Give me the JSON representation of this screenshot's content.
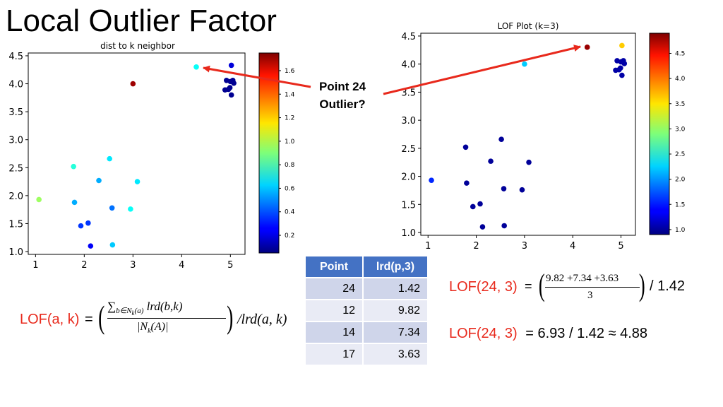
{
  "slide": {
    "title": "Local Outlier Factor"
  },
  "callout": {
    "line1": "Point 24",
    "line2": "Outlier?"
  },
  "colors": {
    "arrow": "#e8291c",
    "header": "#4472c4",
    "row_odd": "#cfd5ea",
    "row_even": "#e9ebf5",
    "accent_text": "#e8291c"
  },
  "chart_data": [
    {
      "type": "scatter",
      "title": "dist to k neighbor",
      "xlim": [
        0.85,
        5.3
      ],
      "ylim": [
        0.95,
        4.55
      ],
      "xticks": [
        "1",
        "2",
        "3",
        "4",
        "5"
      ],
      "yticks": [
        "1.0",
        "1.5",
        "2.0",
        "2.5",
        "3.0",
        "3.5",
        "4.0",
        "4.5"
      ],
      "colormap": "jet",
      "colorbar": {
        "range": [
          0.05,
          1.75
        ],
        "ticks": [
          "0.2",
          "0.4",
          "0.6",
          "0.8",
          "1.0",
          "1.2",
          "1.4",
          "1.6"
        ]
      },
      "points": [
        {
          "x": 1.07,
          "y": 1.93,
          "c": 0.95
        },
        {
          "x": 1.78,
          "y": 2.52,
          "c": 0.75
        },
        {
          "x": 1.8,
          "y": 1.88,
          "c": 0.55
        },
        {
          "x": 1.93,
          "y": 1.46,
          "c": 0.35
        },
        {
          "x": 2.08,
          "y": 1.51,
          "c": 0.35
        },
        {
          "x": 2.13,
          "y": 1.1,
          "c": 0.25
        },
        {
          "x": 2.3,
          "y": 2.27,
          "c": 0.55
        },
        {
          "x": 2.52,
          "y": 2.66,
          "c": 0.65
        },
        {
          "x": 2.57,
          "y": 1.78,
          "c": 0.45
        },
        {
          "x": 2.58,
          "y": 1.12,
          "c": 0.6
        },
        {
          "x": 2.95,
          "y": 1.76,
          "c": 0.7
        },
        {
          "x": 3.09,
          "y": 2.25,
          "c": 0.65
        },
        {
          "x": 3.0,
          "y": 4.0,
          "c": 1.7
        },
        {
          "x": 4.3,
          "y": 4.3,
          "c": 0.7
        },
        {
          "x": 5.02,
          "y": 4.33,
          "c": 0.2
        },
        {
          "x": 4.92,
          "y": 4.06,
          "c": 0.08
        },
        {
          "x": 5.0,
          "y": 4.04,
          "c": 0.08
        },
        {
          "x": 5.05,
          "y": 4.06,
          "c": 0.08
        },
        {
          "x": 5.07,
          "y": 4.01,
          "c": 0.08
        },
        {
          "x": 4.99,
          "y": 3.93,
          "c": 0.08
        },
        {
          "x": 4.89,
          "y": 3.89,
          "c": 0.08
        },
        {
          "x": 4.96,
          "y": 3.9,
          "c": 0.08
        },
        {
          "x": 5.02,
          "y": 3.8,
          "c": 0.08
        }
      ]
    },
    {
      "type": "scatter",
      "title": "LOF Plot (k=3)",
      "xlim": [
        0.85,
        5.3
      ],
      "ylim": [
        0.95,
        4.55
      ],
      "xticks": [
        "1",
        "2",
        "3",
        "4",
        "5"
      ],
      "yticks": [
        "1.0",
        "1.5",
        "2.0",
        "2.5",
        "3.0",
        "3.5",
        "4.0",
        "4.5"
      ],
      "colormap": "jet",
      "colorbar": {
        "range": [
          0.9,
          4.9
        ],
        "ticks": [
          "1.0",
          "1.5",
          "2.0",
          "2.5",
          "3.0",
          "3.5",
          "4.0",
          "4.5"
        ]
      },
      "points": [
        {
          "x": 1.07,
          "y": 1.93,
          "c": 1.55
        },
        {
          "x": 1.78,
          "y": 2.52,
          "c": 1.0
        },
        {
          "x": 1.8,
          "y": 1.88,
          "c": 1.0
        },
        {
          "x": 1.93,
          "y": 1.46,
          "c": 1.0
        },
        {
          "x": 2.08,
          "y": 1.51,
          "c": 1.0
        },
        {
          "x": 2.13,
          "y": 1.1,
          "c": 1.0
        },
        {
          "x": 2.3,
          "y": 2.27,
          "c": 1.0
        },
        {
          "x": 2.52,
          "y": 2.66,
          "c": 1.0
        },
        {
          "x": 2.57,
          "y": 1.78,
          "c": 1.0
        },
        {
          "x": 2.58,
          "y": 1.12,
          "c": 1.0
        },
        {
          "x": 2.95,
          "y": 1.76,
          "c": 1.0
        },
        {
          "x": 3.09,
          "y": 2.25,
          "c": 1.0
        },
        {
          "x": 3.0,
          "y": 4.0,
          "c": 2.2
        },
        {
          "x": 4.3,
          "y": 4.3,
          "c": 4.8
        },
        {
          "x": 5.02,
          "y": 4.33,
          "c": 3.6
        },
        {
          "x": 4.92,
          "y": 4.06,
          "c": 1.05
        },
        {
          "x": 5.0,
          "y": 4.04,
          "c": 1.05
        },
        {
          "x": 5.05,
          "y": 4.06,
          "c": 1.05
        },
        {
          "x": 5.07,
          "y": 4.01,
          "c": 1.05
        },
        {
          "x": 4.99,
          "y": 3.93,
          "c": 1.05
        },
        {
          "x": 4.89,
          "y": 3.89,
          "c": 1.05
        },
        {
          "x": 4.96,
          "y": 3.9,
          "c": 1.05
        },
        {
          "x": 5.02,
          "y": 3.8,
          "c": 1.05
        }
      ]
    }
  ],
  "table": {
    "headers": [
      "Point",
      "lrd(p,3)"
    ],
    "rows": [
      [
        "24",
        "1.42"
      ],
      [
        "12",
        "9.82"
      ],
      [
        "14",
        "7.34"
      ],
      [
        "17",
        "3.63"
      ]
    ]
  },
  "formula_general": {
    "lhs": "LOF(a, k)",
    "eq": "=",
    "sum": "∑",
    "sub_b": "b∈N",
    "sub_k": "k",
    "sub_a": "(a)",
    "lrd_term": "lrd(b,k)",
    "den_left": "|N",
    "den_k": "k",
    "den_right": "(A)|",
    "tail": "/lrd(a, k)"
  },
  "formula_1": {
    "lhs": "LOF(24, 3)",
    "eq": "=",
    "numerator": "9.82 +7.34 +3.63",
    "denominator": "3",
    "tail": "/ 1.42"
  },
  "formula_2": {
    "lhs": "LOF(24, 3)",
    "rhs": "= 6.93 / 1.42 ≈ 4.88"
  }
}
